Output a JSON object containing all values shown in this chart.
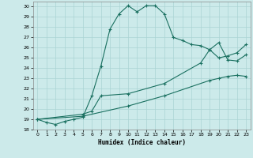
{
  "xlabel": "Humidex (Indice chaleur)",
  "xlim": [
    -0.5,
    23.5
  ],
  "ylim": [
    18,
    30.5
  ],
  "yticks": [
    18,
    19,
    20,
    21,
    22,
    23,
    24,
    25,
    26,
    27,
    28,
    29,
    30
  ],
  "xticks": [
    0,
    1,
    2,
    3,
    4,
    5,
    6,
    7,
    8,
    9,
    10,
    11,
    12,
    13,
    14,
    15,
    16,
    17,
    18,
    19,
    20,
    21,
    22,
    23
  ],
  "bg_color": "#cceaea",
  "grid_color": "#aad4d4",
  "line_color": "#1a7060",
  "line1_x": [
    0,
    1,
    2,
    3,
    4,
    5,
    6,
    7,
    8,
    9,
    10,
    11,
    12,
    13,
    14,
    15,
    16,
    17,
    18,
    19,
    20,
    21,
    22,
    23
  ],
  "line1_y": [
    19,
    18.7,
    18.5,
    18.8,
    19.0,
    19.2,
    21.3,
    24.2,
    27.8,
    29.3,
    30.1,
    29.5,
    30.1,
    30.1,
    29.3,
    27.0,
    26.7,
    26.3,
    26.2,
    25.8,
    25.0,
    25.2,
    25.5,
    26.3
  ],
  "line2_x": [
    0,
    5,
    10,
    14,
    19,
    20,
    21,
    22,
    23
  ],
  "line2_y": [
    19,
    19.3,
    20.3,
    21.3,
    22.8,
    23.0,
    23.2,
    23.3,
    23.2
  ],
  "line3_x": [
    0,
    5,
    6,
    7,
    10,
    14,
    18,
    19,
    20,
    21,
    22,
    23
  ],
  "line3_y": [
    19,
    19.5,
    19.8,
    21.3,
    21.5,
    22.5,
    24.5,
    25.8,
    26.5,
    24.8,
    24.7,
    25.3
  ]
}
